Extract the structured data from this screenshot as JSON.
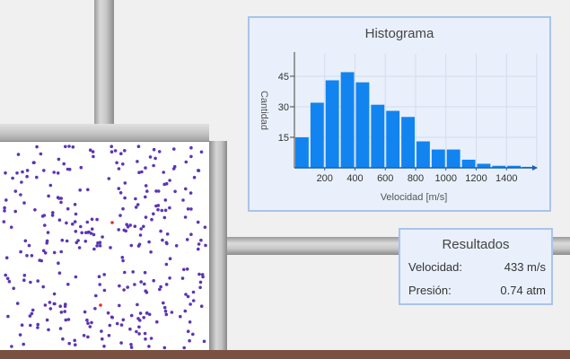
{
  "histogram": {
    "title": "Histograma",
    "chart_data": {
      "type": "bar",
      "title": "Histograma",
      "xlabel": "Velocidad [m/s]",
      "ylabel": "Cantidad",
      "x_ticks": [
        200,
        400,
        600,
        800,
        1000,
        1200,
        1400
      ],
      "y_ticks": [
        15,
        30,
        45
      ],
      "xlim": [
        0,
        1500
      ],
      "ylim": [
        0,
        56
      ],
      "bin_width": 100,
      "bin_starts": [
        0,
        100,
        200,
        300,
        400,
        500,
        600,
        700,
        800,
        900,
        1000,
        1100,
        1200,
        1300,
        1400,
        1500
      ],
      "values": [
        15,
        32,
        43,
        47,
        42,
        31,
        28,
        25,
        13,
        9,
        9,
        4,
        2,
        1,
        1,
        0.5
      ],
      "grid": true,
      "bar_color": "#1184f0"
    }
  },
  "results": {
    "title": "Resultados",
    "velocity_label": "Velocidad:",
    "velocity_value": "433 m/s",
    "pressure_label": "Presión:",
    "pressure_value": "0.74 atm"
  },
  "colors": {
    "particle": "#5c35b5",
    "particle_highlight": "#e03030",
    "panel_bg": "#e9f0fb",
    "panel_border": "#a9c4ec",
    "ground": "#7a5040"
  }
}
